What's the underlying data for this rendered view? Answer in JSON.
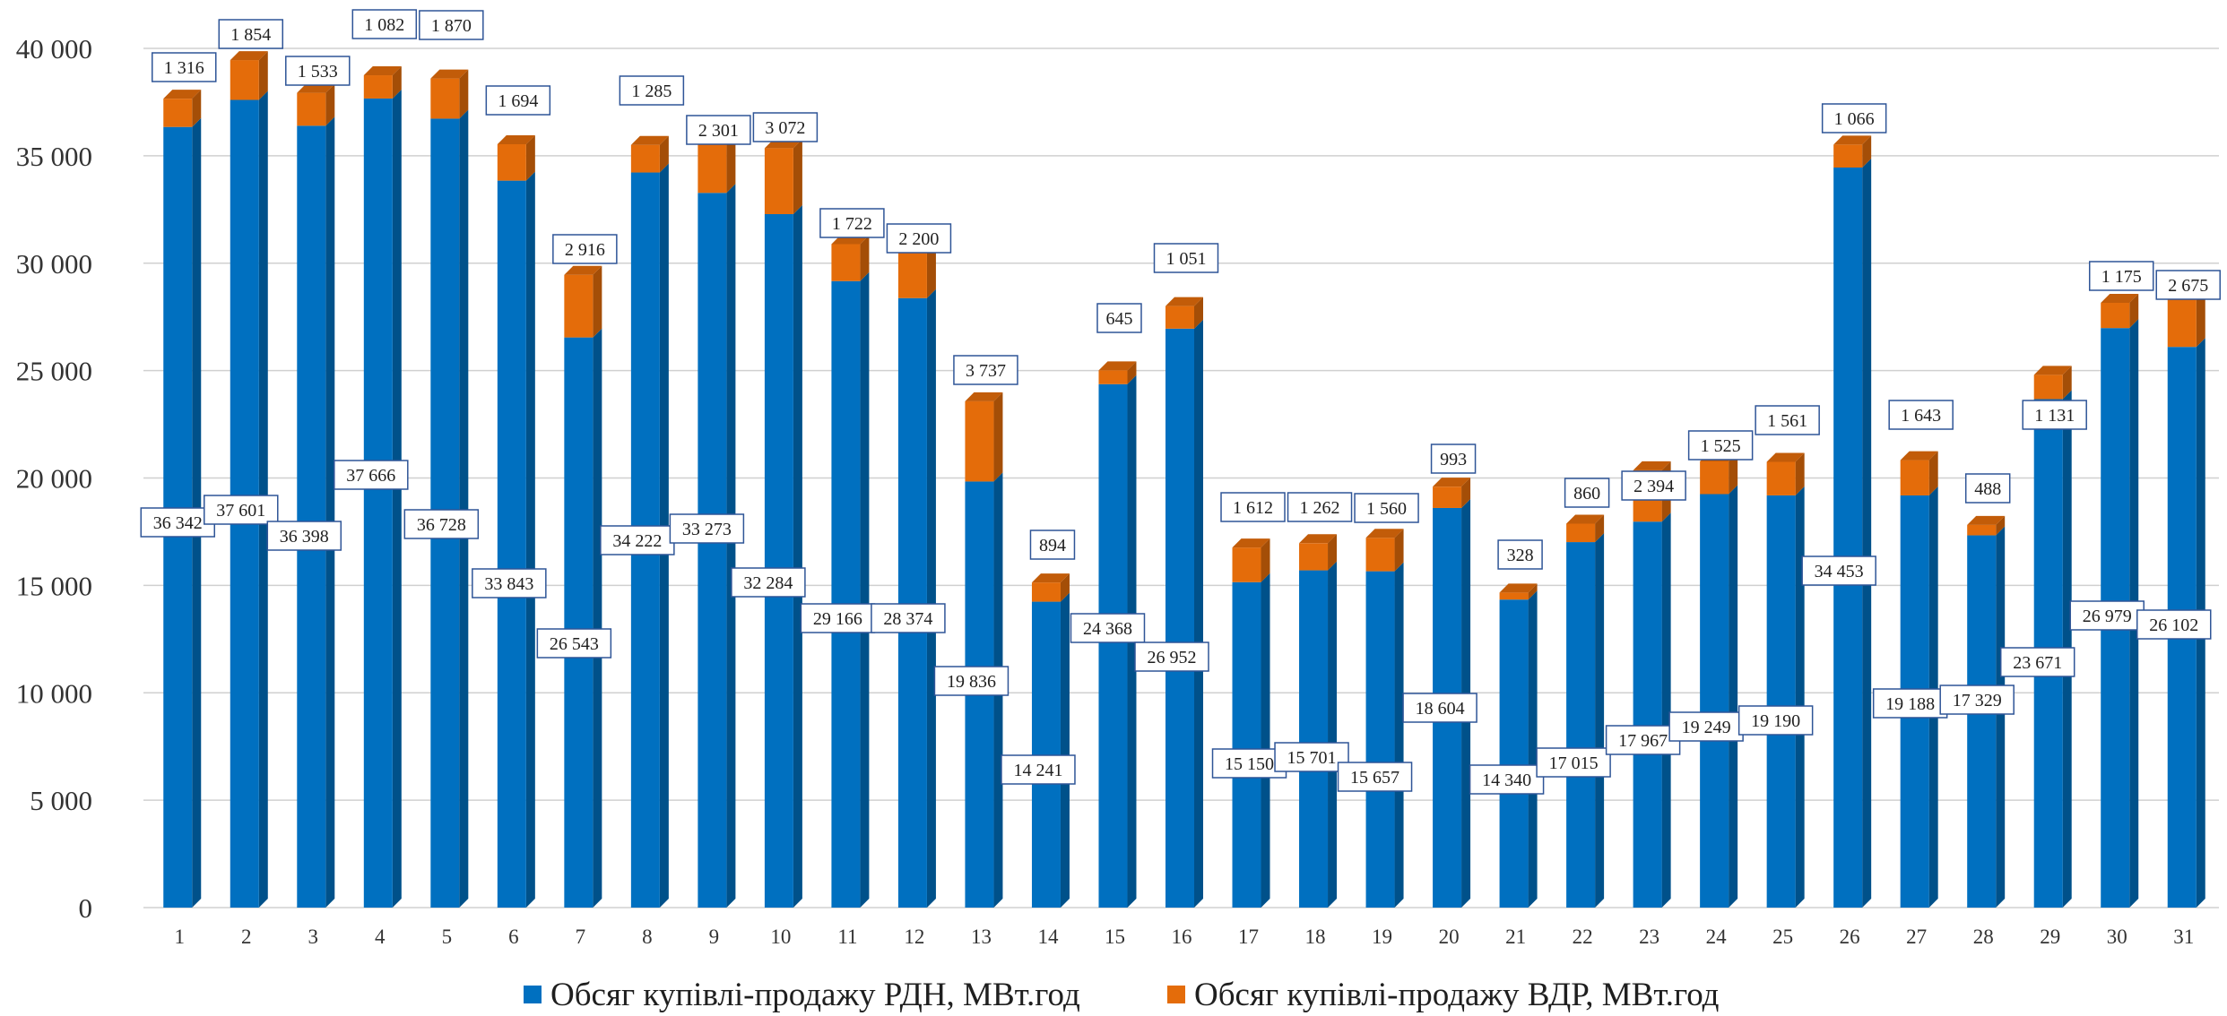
{
  "chart_data": {
    "type": "bar",
    "stacked": true,
    "three_d": true,
    "categories": [
      "1",
      "2",
      "3",
      "4",
      "5",
      "6",
      "7",
      "8",
      "9",
      "10",
      "11",
      "12",
      "13",
      "14",
      "15",
      "16",
      "17",
      "18",
      "19",
      "20",
      "21",
      "22",
      "23",
      "24",
      "25",
      "26",
      "27",
      "28",
      "29",
      "30",
      "31"
    ],
    "series": [
      {
        "name": "Обсяг купівлі-продажу РДН, МВт.год",
        "color": "#0070C0",
        "values": [
          36342,
          37601,
          36398,
          37666,
          36728,
          33843,
          26543,
          34222,
          33273,
          32284,
          29166,
          28374,
          19836,
          14241,
          24368,
          26952,
          15150,
          15701,
          15657,
          18604,
          14340,
          17015,
          17967,
          19249,
          19190,
          34453,
          19188,
          17329,
          23671,
          26979,
          26102
        ]
      },
      {
        "name": "Обсяг купівлі-продажу ВДР, МВт.год",
        "color": "#E46C0A",
        "values": [
          1316,
          1854,
          1533,
          1082,
          1870,
          1694,
          2916,
          1285,
          2301,
          3072,
          1722,
          2200,
          3737,
          894,
          645,
          1051,
          1612,
          1262,
          1560,
          993,
          328,
          860,
          2394,
          1525,
          1561,
          1066,
          1643,
          488,
          1131,
          1175,
          2675
        ]
      }
    ],
    "labels_rdn": [
      "36 342",
      "37 601",
      "36 398",
      "37 666",
      "36 728",
      "33 843",
      "26 543",
      "34 222",
      "33 273",
      "32 284",
      "29 166",
      "28 374",
      "19 836",
      "14 241",
      "24 368",
      "26 952",
      "15 150",
      "15 701",
      "15 657",
      "18 604",
      "14 340",
      "17 015",
      "17 967",
      "19 249",
      "19 190",
      "34 453",
      "19 188",
      "17 329",
      "23 671",
      "26 979",
      "26 102"
    ],
    "labels_vdr": [
      "1 316",
      "1 854",
      "1 533",
      "1 082",
      "1 870",
      "1 694",
      "2 916",
      "1 285",
      "2 301",
      "3 072",
      "1 722",
      "2 200",
      "3 737",
      "894",
      "645",
      "1 051",
      "1 612",
      "1 262",
      "1 560",
      "993",
      "328",
      "860",
      "2 394",
      "1 525",
      "1 561",
      "1 066",
      "1 643",
      "488",
      "1 131",
      "1 175",
      "2 675"
    ],
    "ylim": [
      0,
      40000
    ],
    "yticks": [
      0,
      5000,
      10000,
      15000,
      20000,
      25000,
      30000,
      35000,
      40000
    ],
    "ytick_labels": [
      "0",
      "5 000",
      "10 000",
      "15 000",
      "20 000",
      "25 000",
      "30 000",
      "35 000",
      "40 000"
    ],
    "grid": true,
    "legend_position": "bottom",
    "title": "",
    "xlabel": "",
    "ylabel": ""
  }
}
